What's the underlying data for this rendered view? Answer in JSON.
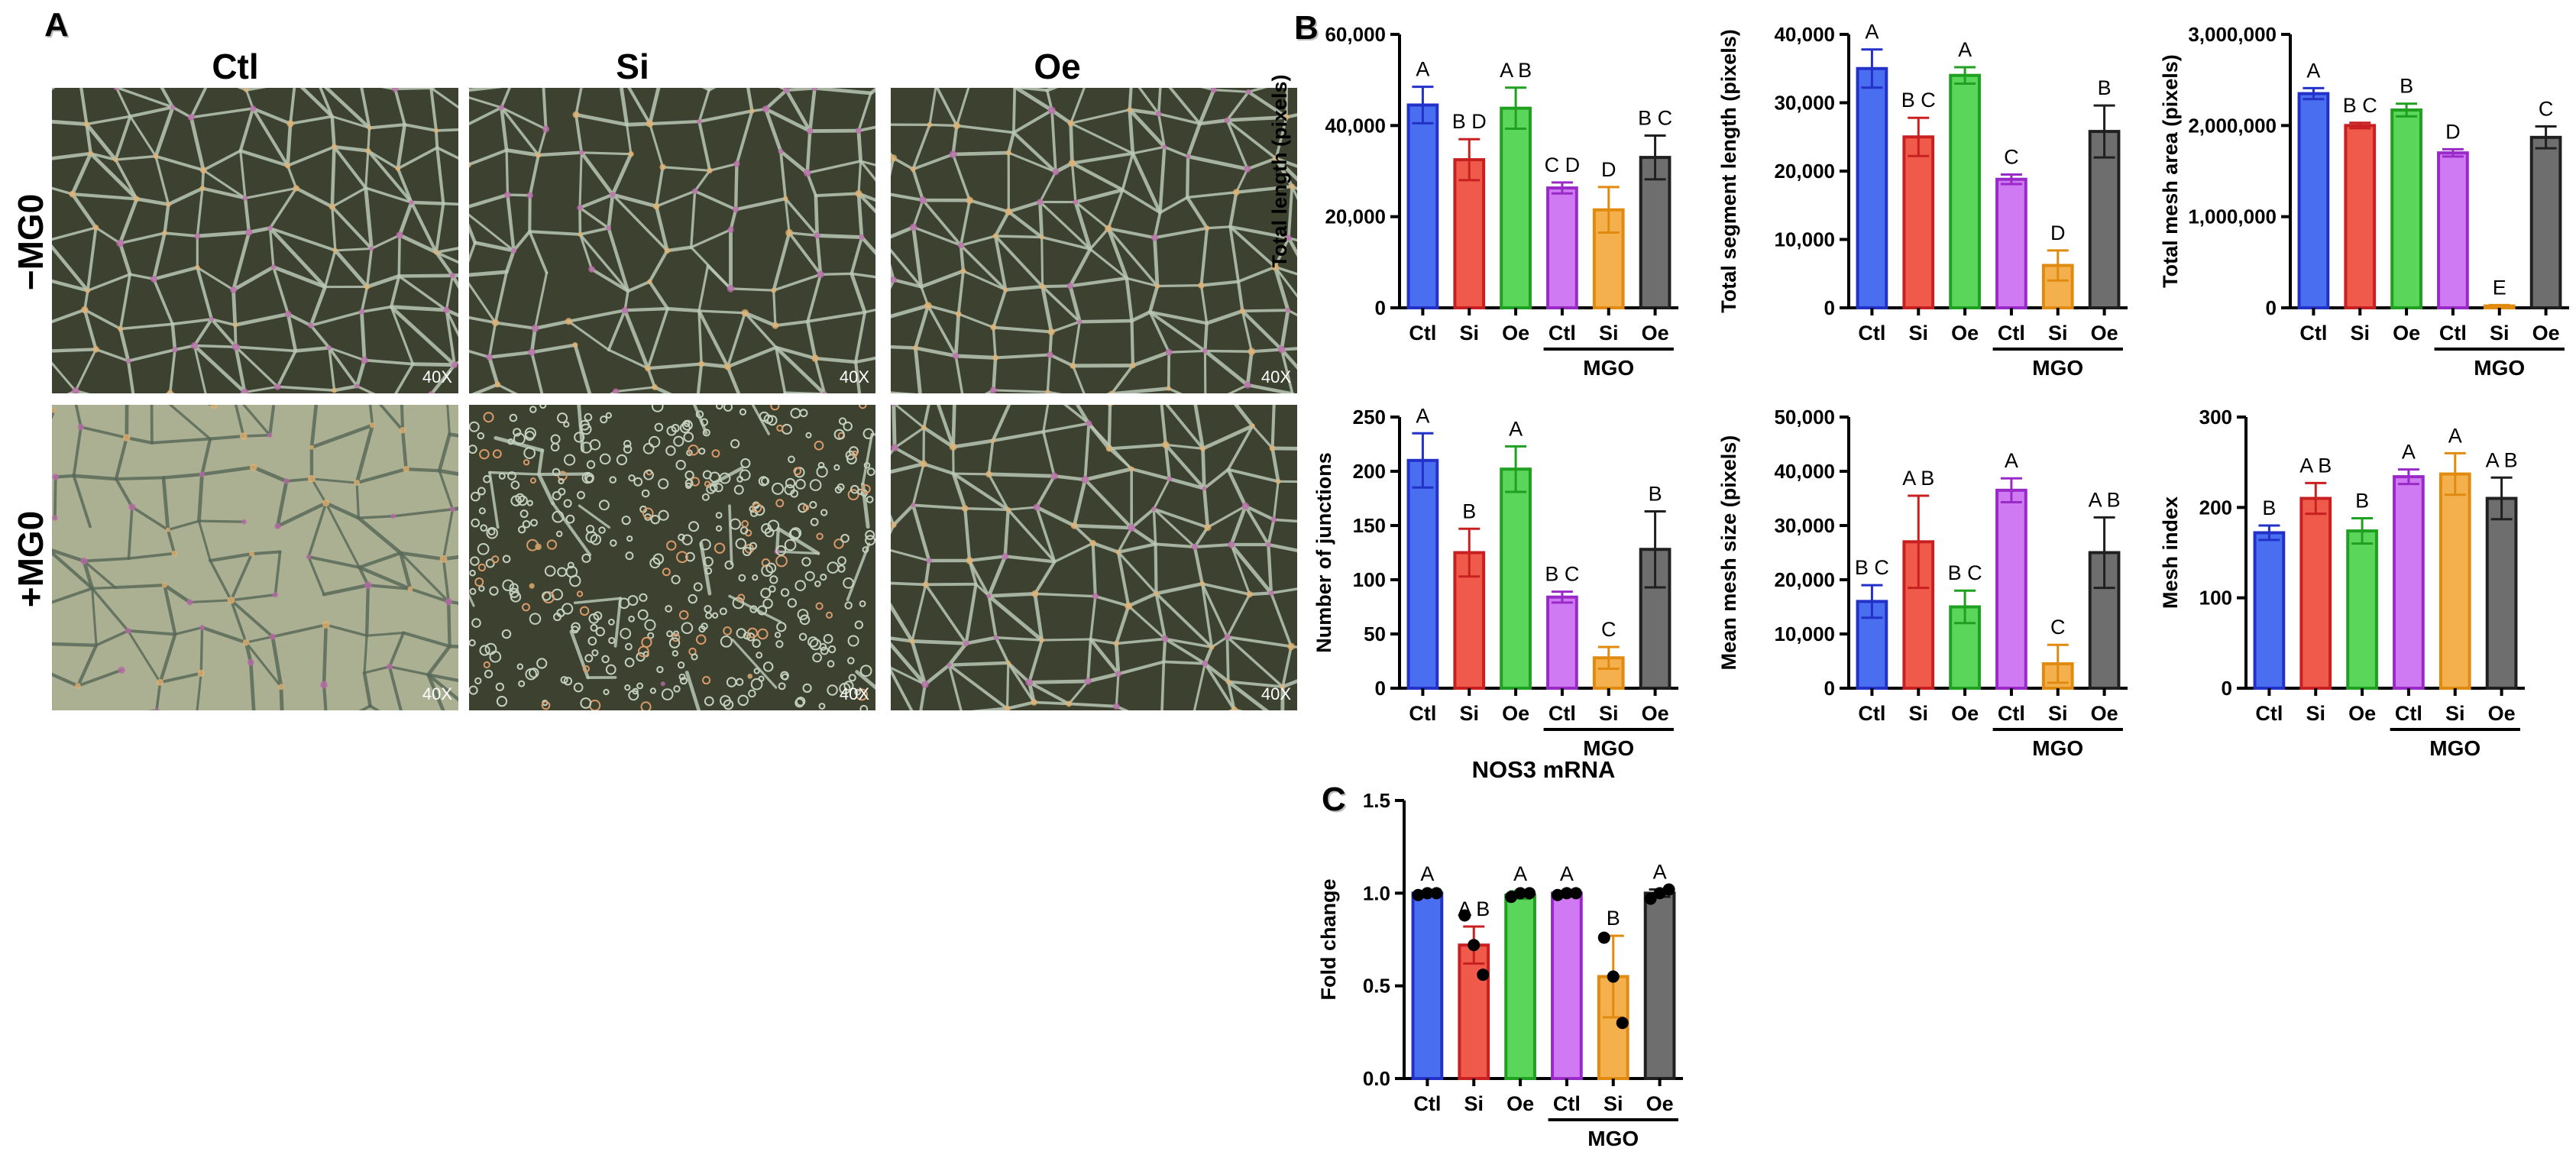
{
  "panels": {
    "A": {
      "letter": "A",
      "columns": [
        "Ctl",
        "Si",
        "Oe"
      ],
      "rows": [
        "−MG0",
        "+MG0"
      ],
      "magnification": "40X"
    },
    "B": {
      "letter": "B"
    },
    "C": {
      "letter": "C"
    }
  },
  "colors": {
    "Ctl": "#4a6ef0",
    "Si": "#f05a4a",
    "Oe": "#5ad65a",
    "MGO_Ctl": "#cf7af2",
    "MGO_Si": "#f5b04e",
    "MGO_Oe": "#6e6e6e",
    "edge_blue": "#2232c8",
    "edge_red": "#c82020",
    "edge_green": "#20a020",
    "edge_purple": "#9a2ac8",
    "edge_orange": "#e08a10",
    "edge_gray": "#202020"
  },
  "chart_data": [
    {
      "id": "total-length",
      "type": "bar",
      "panel": "B",
      "categories": [
        "Ctl",
        "Si",
        "Oe",
        "Ctl",
        "Si",
        "Oe"
      ],
      "group_label": "MGO",
      "values": [
        44500,
        32500,
        43800,
        26300,
        21500,
        33000
      ],
      "errors": [
        4000,
        4500,
        4500,
        1200,
        5000,
        4800
      ],
      "letters": [
        "A",
        "B D",
        "A B",
        "C D",
        "D",
        "B C"
      ],
      "ylabel": "Total length (pixels)",
      "ylim": [
        0,
        60000
      ],
      "yticks": [
        0,
        20000,
        40000,
        60000
      ],
      "ytick_labels": [
        "0",
        "20,000",
        "40,000",
        "60,000"
      ]
    },
    {
      "id": "total-segment-length",
      "type": "bar",
      "panel": "B",
      "categories": [
        "Ctl",
        "Si",
        "Oe",
        "Ctl",
        "Si",
        "Oe"
      ],
      "group_label": "MGO",
      "values": [
        35000,
        25000,
        34000,
        18800,
        6200,
        25800
      ],
      "errors": [
        2800,
        2800,
        1200,
        700,
        2200,
        3800
      ],
      "letters": [
        "A",
        "B C",
        "A",
        "C",
        "D",
        "B"
      ],
      "ylabel": "Total segment length (pixels)",
      "ylim": [
        0,
        40000
      ],
      "yticks": [
        0,
        10000,
        20000,
        30000,
        40000
      ],
      "ytick_labels": [
        "0",
        "10,000",
        "20,000",
        "30,000",
        "40,000"
      ]
    },
    {
      "id": "total-mesh-area",
      "type": "bar",
      "panel": "B",
      "categories": [
        "Ctl",
        "Si",
        "Oe",
        "Ctl",
        "Si",
        "Oe"
      ],
      "group_label": "MGO",
      "values": [
        2350000,
        2000000,
        2170000,
        1700000,
        20000,
        1870000
      ],
      "errors": [
        60000,
        30000,
        70000,
        40000,
        10000,
        120000
      ],
      "letters": [
        "A",
        "B C",
        "B",
        "D",
        "E",
        "C"
      ],
      "ylabel": "Total mesh area (pixels)",
      "ylim": [
        0,
        3000000
      ],
      "yticks": [
        0,
        1000000,
        2000000,
        3000000
      ],
      "ytick_labels": [
        "0",
        "1,000,000",
        "2,000,000",
        "3,000,000"
      ]
    },
    {
      "id": "number-of-junctions",
      "type": "bar",
      "panel": "B",
      "categories": [
        "Ctl",
        "Si",
        "Oe",
        "Ctl",
        "Si",
        "Oe"
      ],
      "group_label": "MGO",
      "values": [
        210,
        125,
        202,
        84,
        28,
        128
      ],
      "errors": [
        25,
        22,
        21,
        5,
        10,
        35
      ],
      "letters": [
        "A",
        "B",
        "A",
        "B C",
        "C",
        "B"
      ],
      "ylabel": "Number of junctions",
      "ylim": [
        0,
        250
      ],
      "yticks": [
        0,
        50,
        100,
        150,
        200,
        250
      ],
      "ytick_labels": [
        "0",
        "50",
        "100",
        "150",
        "200",
        "250"
      ]
    },
    {
      "id": "mean-mesh-size",
      "type": "bar",
      "panel": "B",
      "categories": [
        "Ctl",
        "Si",
        "Oe",
        "Ctl",
        "Si",
        "Oe"
      ],
      "group_label": "MGO",
      "values": [
        16000,
        27000,
        15000,
        36500,
        4500,
        25000
      ],
      "errors": [
        3000,
        8500,
        3000,
        2200,
        3500,
        6500
      ],
      "letters": [
        "B C",
        "A B",
        "B C",
        "A",
        "C",
        "A B"
      ],
      "ylabel": "Mean mesh size (pixels)",
      "ylim": [
        0,
        50000
      ],
      "yticks": [
        0,
        10000,
        20000,
        30000,
        40000,
        50000
      ],
      "ytick_labels": [
        "0",
        "10,000",
        "20,000",
        "30,000",
        "40,000",
        "50,000"
      ]
    },
    {
      "id": "mesh-index",
      "type": "bar",
      "panel": "B",
      "categories": [
        "Ctl",
        "Si",
        "Oe",
        "Ctl",
        "Si",
        "Oe"
      ],
      "group_label": "MGO",
      "values": [
        172,
        210,
        174,
        234,
        237,
        210
      ],
      "errors": [
        8,
        17,
        14,
        8,
        23,
        23
      ],
      "letters": [
        "B",
        "A B",
        "B",
        "A",
        "A",
        "A B"
      ],
      "ylabel": "Mesh index",
      "ylim": [
        0,
        300
      ],
      "yticks": [
        0,
        100,
        200,
        300
      ],
      "ytick_labels": [
        "0",
        "100",
        "200",
        "300"
      ]
    },
    {
      "id": "nos3-mrna",
      "type": "bar",
      "panel": "C",
      "title": "NOS3 mRNA",
      "categories": [
        "Ctl",
        "Si",
        "Oe",
        "Ctl",
        "Si",
        "Oe"
      ],
      "group_label": "MGO",
      "values": [
        1.0,
        0.72,
        0.99,
        1.0,
        0.55,
        1.0
      ],
      "errors": [
        0.01,
        0.1,
        0.02,
        0.01,
        0.22,
        0.02
      ],
      "points": [
        [
          0.99,
          1.0,
          1.0
        ],
        [
          0.88,
          0.72,
          0.56
        ],
        [
          0.98,
          1.0,
          1.0
        ],
        [
          0.99,
          1.0,
          1.0
        ],
        [
          0.76,
          0.55,
          0.3
        ],
        [
          0.97,
          1.0,
          1.02
        ]
      ],
      "letters": [
        "A",
        "A B",
        "A",
        "A",
        "B",
        "A"
      ],
      "ylabel": "Fold change",
      "ylim": [
        0,
        1.5
      ],
      "yticks": [
        0,
        0.5,
        1.0,
        1.5
      ],
      "ytick_labels": [
        "0.0",
        "0.5",
        "1.0",
        "1.5"
      ]
    }
  ]
}
